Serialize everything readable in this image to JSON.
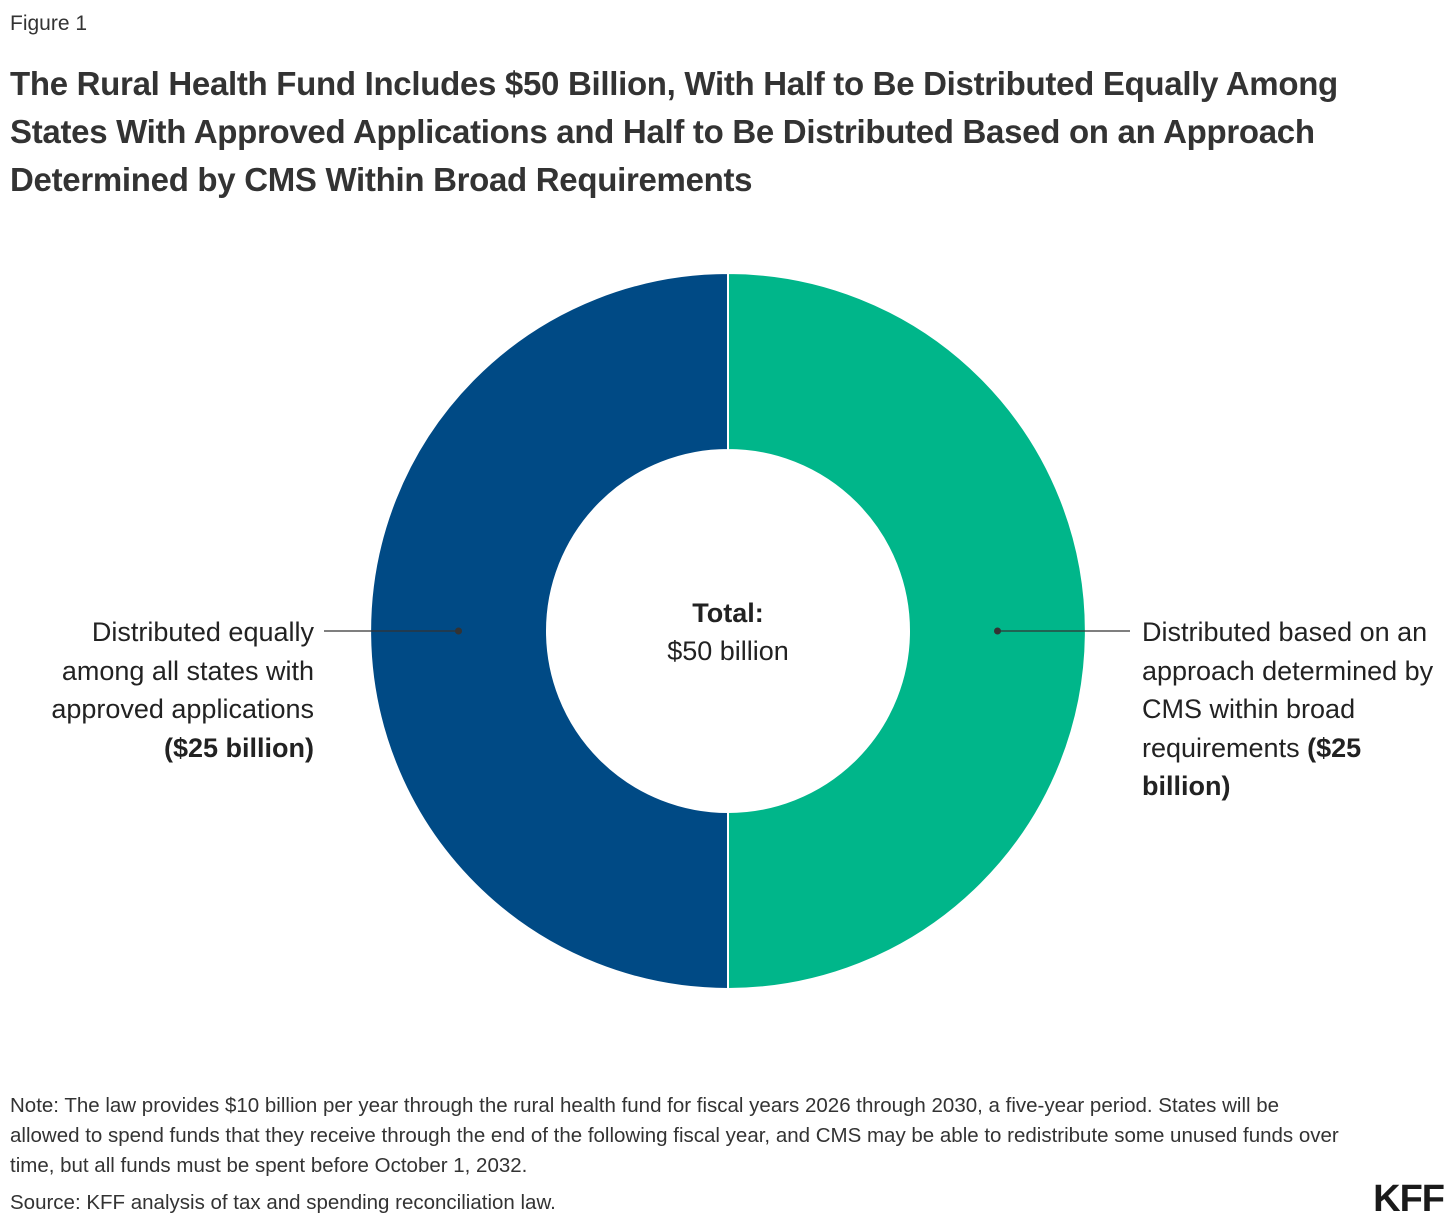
{
  "figure_label": "Figure 1",
  "title": "The Rural Health Fund Includes $50 Billion, With Half to Be Distributed Equally Among States With Approved Applications and Half to Be Distributed Based on an Approach Determined by CMS Within Broad Requirements",
  "chart_data": {
    "type": "pie",
    "donut": true,
    "title": "The Rural Health Fund Includes $50 Billion, With Half to Be Distributed Equally Among States With Approved Applications and Half to Be Distributed Based on an Approach Determined by CMS Within Broad Requirements",
    "unit": "billion dollars",
    "slices": [
      {
        "name": "Distributed based on an approach determined by CMS within broad requirements",
        "label_text": "Distributed based on an approach determined by CMS within broad requirements",
        "value_text": "($25 billion)",
        "value": 25,
        "color": "#00b68a",
        "side": "right"
      },
      {
        "name": "Distributed equally among all states with approved applications",
        "label_text": "Distributed equally among all states with approved applications",
        "value_text": "($25 billion)",
        "value": 25,
        "color": "#004a85",
        "side": "left"
      }
    ],
    "center_label": {
      "heading": "Total:",
      "value": "$50 billion"
    },
    "total": 50
  },
  "note": "Note: The law provides $10 billion per year through the rural health fund for fiscal years 2026 through 2030, a five-year period. States will be allowed to spend funds that they receive through the end of the following fiscal year, and CMS may be able to redistribute some unused funds over time, but all funds must be spent before October 1, 2032.",
  "source": "Source: KFF analysis of tax and spending reconciliation law.",
  "logo": "KFF"
}
